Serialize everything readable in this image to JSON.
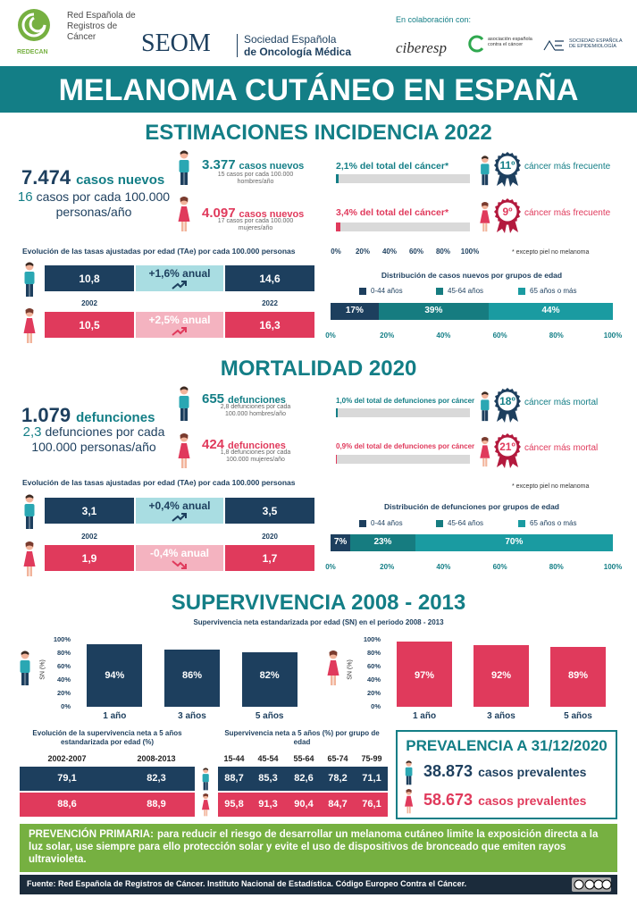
{
  "header": {
    "redecan_name": "Red Española de Registros de Cáncer",
    "redecan": "REDECAN",
    "seom": "SEOM",
    "seom_name_1": "Sociedad Española",
    "seom_name_2": "de Oncología Médica",
    "collab": "En colaboración con:",
    "ciberesp": "ciberesp",
    "aecc": "asociación española contra el cáncer",
    "see": "SOCIEDAD ESPAÑOLA DE EPIDEMIOLOGÍA"
  },
  "title": "MELANOMA CUTÁNEO EN ESPAÑA",
  "incidence": {
    "heading": "ESTIMACIONES INCIDENCIA 2022",
    "total": {
      "number": "7.474",
      "unit": "casos nuevos",
      "rate": "16",
      "rate_text": "casos por cada 100.000 personas/año"
    },
    "men": {
      "number": "3.377",
      "unit": "casos nuevos",
      "rate_text": "15 casos por cada 100.000 hombres/año"
    },
    "women": {
      "number": "4.097",
      "unit": "casos nuevos",
      "rate_text": "17 casos por cada 100.000 mujeres/año"
    },
    "share": {
      "values": [
        2.1,
        3.4
      ],
      "value_labels": [
        "2,1% del total del cáncer*",
        "3,4% del total del cáncer*"
      ],
      "ticks": [
        {
          "value": 0,
          "label": "0%"
        },
        {
          "value": 20,
          "label": "20%"
        },
        {
          "value": 40,
          "label": "40%"
        },
        {
          "value": 60,
          "label": "60%"
        },
        {
          "value": 80,
          "label": "80%"
        },
        {
          "value": 100,
          "label": "100%"
        }
      ],
      "rank": [
        "11º",
        "9º"
      ],
      "rank_text": [
        "cáncer más frecuente",
        "cáncer más frecuente"
      ],
      "note": "* excepto piel no melanoma"
    },
    "trend": {
      "title": "Evolución de las tasas ajustadas por edad (TAe) por cada 100.000 personas",
      "years": [
        "2002",
        "2022"
      ],
      "men": {
        "start": "10,8",
        "change": "+1,6% anual",
        "end": "14,6"
      },
      "women": {
        "start": "10,5",
        "change": "+2,5% anual",
        "end": "16,3"
      }
    },
    "age": {
      "title": "Distribución de casos nuevos por grupos de edad",
      "groups": [
        "0-44 años",
        "45-64 años",
        "65 años o más"
      ],
      "colors": [
        "#1d3f5e",
        "#167c80",
        "#1a9ba1"
      ],
      "values": [
        17,
        39,
        44
      ],
      "value_labels": [
        "17%",
        "39%",
        "44%"
      ],
      "ticks": [
        {
          "value": 0,
          "label": "0%"
        },
        {
          "value": 20,
          "label": "20%"
        },
        {
          "value": 40,
          "label": "40%"
        },
        {
          "value": 60,
          "label": "60%"
        },
        {
          "value": 80,
          "label": "80%"
        },
        {
          "value": 100,
          "label": "100%"
        }
      ]
    }
  },
  "mortality": {
    "heading": "MORTALIDAD 2020",
    "total": {
      "number": "1.079",
      "unit": "defunciones",
      "rate": "2,3",
      "rate_text": "defunciones por cada 100.000 personas/año"
    },
    "men": {
      "number": "655",
      "unit": "defunciones",
      "rate_text": "2,8 defunciones por cada 100.000 hombres/año"
    },
    "women": {
      "number": "424",
      "unit": "defunciones",
      "rate_text": "1,8 defunciones por cada 100.000 mujeres/año"
    },
    "share": {
      "values": [
        1.0,
        0.9
      ],
      "value_labels": [
        "1,0% del total de defunciones por cáncer",
        "0,9% del total de defunciones por cáncer"
      ],
      "rank": [
        "18º",
        "21º"
      ],
      "rank_text": [
        "cáncer más mortal",
        "cáncer más mortal"
      ],
      "note": "* excepto piel no melanoma"
    },
    "trend": {
      "title": "Evolución de las tasas ajustadas por edad (TAe) por cada 100.000 personas",
      "years": [
        "2002",
        "2020"
      ],
      "men": {
        "start": "3,1",
        "change": "+0,4% anual",
        "end": "3,5"
      },
      "women": {
        "start": "1,9",
        "change": "-0,4% anual",
        "end": "1,7"
      }
    },
    "age": {
      "title": "Distribución de defunciones por grupos de edad",
      "groups": [
        "0-44 años",
        "45-64 años",
        "65 años o más"
      ],
      "colors": [
        "#1d3f5e",
        "#167c80",
        "#1a9ba1"
      ],
      "values": [
        7,
        23,
        70
      ],
      "value_labels": [
        "7%",
        "23%",
        "70%"
      ],
      "ticks": [
        {
          "value": 0,
          "label": "0%"
        },
        {
          "value": 20,
          "label": "20%"
        },
        {
          "value": 40,
          "label": "40%"
        },
        {
          "value": 60,
          "label": "60%"
        },
        {
          "value": 80,
          "label": "80%"
        },
        {
          "value": 100,
          "label": "100%"
        }
      ]
    }
  },
  "survival": {
    "heading": "SUPERVIVENCIA 2008 - 2013",
    "subtitle": "Supervivencia neta estandarizada por edad (SN) en el periodo 2008 - 2013",
    "y_label": "SN (%)",
    "categories": [
      "1 año",
      "3 años",
      "5 años"
    ],
    "ylim": [
      0,
      100
    ],
    "yticks": [
      {
        "value": 0,
        "label": "0%"
      },
      {
        "value": 20,
        "label": "20%"
      },
      {
        "value": 40,
        "label": "40%"
      },
      {
        "value": 60,
        "label": "60%"
      },
      {
        "value": 80,
        "label": "80%"
      },
      {
        "value": 100,
        "label": "100%"
      }
    ],
    "men": {
      "values": [
        94,
        86,
        82
      ],
      "value_labels": [
        "94%",
        "86%",
        "82%"
      ]
    },
    "women": {
      "values": [
        97,
        92,
        89
      ],
      "value_labels": [
        "97%",
        "92%",
        "89%"
      ]
    }
  },
  "evolution": {
    "title": "Evolución de la supervivencia neta a 5 años estandarizada por edad (%)",
    "columns": [
      "2002-2007",
      "2008-2013"
    ],
    "men": [
      "79,1",
      "82,3"
    ],
    "women": [
      "88,6",
      "88,9"
    ]
  },
  "age_survival": {
    "title": "Supervivencia neta a 5 años (%) por grupo de edad",
    "columns": [
      "15-44",
      "45-54",
      "55-64",
      "65-74",
      "75-99"
    ],
    "men": [
      "88,7",
      "85,3",
      "82,6",
      "78,2",
      "71,1"
    ],
    "women": [
      "95,8",
      "91,3",
      "90,4",
      "84,7",
      "76,1"
    ]
  },
  "prevalence": {
    "title": "PREVALENCIA A 31/12/2020",
    "men": {
      "number": "38.873",
      "text": "casos prevalentes"
    },
    "women": {
      "number": "58.673",
      "text": "casos prevalentes"
    }
  },
  "prevention": {
    "lead": "PREVENCIÓN PRIMARIA:",
    "text": "para reducir el riesgo de desarrollar un melanoma cutáneo limite la exposición directa a la luz solar, use siempre para ello protección solar y evite el uso de dispositivos de bronceado que emiten rayos ultravioleta."
  },
  "source": "Fuente: Red Española de Registros de Cáncer. Instituto Nacional de Estadística. Código Europeo Contra el Cáncer."
}
